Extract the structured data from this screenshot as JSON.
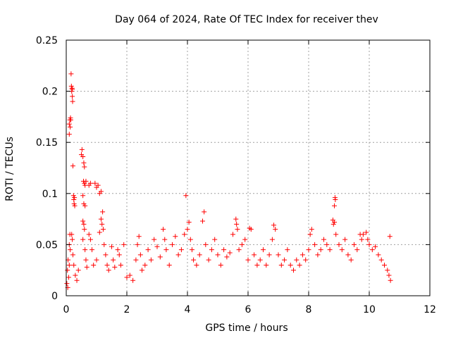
{
  "chart_data": {
    "type": "scatter",
    "title": "Day 064 of 2024, Rate Of TEC Index for receiver thev",
    "xlabel": "GPS time / hours",
    "ylabel": "ROTI / TECUs",
    "xlim": [
      0,
      12
    ],
    "ylim": [
      0,
      0.25
    ],
    "x_ticks": [
      0,
      2,
      4,
      6,
      8,
      10,
      12
    ],
    "x_tick_labels": [
      "0",
      "2",
      "4",
      "6",
      "8",
      "10",
      "12"
    ],
    "y_ticks": [
      0,
      0.05,
      0.1,
      0.15,
      0.2,
      0.25
    ],
    "y_tick_labels": [
      "0",
      "0.05",
      "0.1",
      "0.15",
      "0.2",
      "0.25"
    ],
    "grid": true,
    "marker": "+",
    "color": "#ff0000",
    "series": [
      {
        "name": "ROTI",
        "points": [
          [
            0.02,
            0.012
          ],
          [
            0.04,
            0.025
          ],
          [
            0.06,
            0.035
          ],
          [
            0.05,
            0.008
          ],
          [
            0.08,
            0.018
          ],
          [
            0.1,
            0.03
          ],
          [
            0.1,
            0.05
          ],
          [
            0.12,
            0.06
          ],
          [
            0.13,
            0.045
          ],
          [
            0.1,
            0.158
          ],
          [
            0.1,
            0.168
          ],
          [
            0.12,
            0.172
          ],
          [
            0.14,
            0.174
          ],
          [
            0.15,
            0.172
          ],
          [
            0.13,
            0.165
          ],
          [
            0.16,
            0.217
          ],
          [
            0.17,
            0.205
          ],
          [
            0.18,
            0.2
          ],
          [
            0.19,
            0.203
          ],
          [
            0.2,
            0.195
          ],
          [
            0.21,
            0.19
          ],
          [
            0.2,
            0.202
          ],
          [
            0.22,
            0.127
          ],
          [
            0.24,
            0.098
          ],
          [
            0.25,
            0.094
          ],
          [
            0.27,
            0.096
          ],
          [
            0.26,
            0.09
          ],
          [
            0.28,
            0.088
          ],
          [
            0.18,
            0.06
          ],
          [
            0.2,
            0.055
          ],
          [
            0.22,
            0.04
          ],
          [
            0.25,
            0.03
          ],
          [
            0.3,
            0.02
          ],
          [
            0.35,
            0.015
          ],
          [
            0.4,
            0.025
          ],
          [
            0.5,
            0.138
          ],
          [
            0.52,
            0.143
          ],
          [
            0.55,
            0.136
          ],
          [
            0.58,
            0.13
          ],
          [
            0.6,
            0.126
          ],
          [
            0.57,
            0.112
          ],
          [
            0.6,
            0.11
          ],
          [
            0.62,
            0.108
          ],
          [
            0.65,
            0.112
          ],
          [
            0.55,
            0.098
          ],
          [
            0.58,
            0.09
          ],
          [
            0.62,
            0.088
          ],
          [
            0.55,
            0.073
          ],
          [
            0.58,
            0.07
          ],
          [
            0.6,
            0.065
          ],
          [
            0.55,
            0.055
          ],
          [
            0.62,
            0.045
          ],
          [
            0.65,
            0.035
          ],
          [
            0.68,
            0.028
          ],
          [
            0.75,
            0.108
          ],
          [
            0.8,
            0.11
          ],
          [
            0.95,
            0.11
          ],
          [
            1.0,
            0.106
          ],
          [
            1.05,
            0.108
          ],
          [
            1.1,
            0.1
          ],
          [
            1.15,
            0.102
          ],
          [
            0.75,
            0.06
          ],
          [
            0.8,
            0.055
          ],
          [
            0.85,
            0.045
          ],
          [
            0.9,
            0.03
          ],
          [
            1.0,
            0.035
          ],
          [
            1.1,
            0.062
          ],
          [
            1.15,
            0.075
          ],
          [
            1.2,
            0.082
          ],
          [
            1.18,
            0.07
          ],
          [
            1.22,
            0.065
          ],
          [
            1.25,
            0.05
          ],
          [
            1.3,
            0.04
          ],
          [
            1.35,
            0.03
          ],
          [
            1.4,
            0.025
          ],
          [
            1.5,
            0.048
          ],
          [
            1.55,
            0.035
          ],
          [
            1.6,
            0.028
          ],
          [
            1.7,
            0.045
          ],
          [
            1.75,
            0.04
          ],
          [
            1.8,
            0.03
          ],
          [
            1.9,
            0.05
          ],
          [
            2.0,
            0.018
          ],
          [
            2.1,
            0.02
          ],
          [
            2.2,
            0.015
          ],
          [
            2.3,
            0.035
          ],
          [
            2.35,
            0.05
          ],
          [
            2.4,
            0.058
          ],
          [
            2.45,
            0.04
          ],
          [
            2.5,
            0.025
          ],
          [
            2.6,
            0.03
          ],
          [
            2.7,
            0.045
          ],
          [
            2.8,
            0.035
          ],
          [
            2.9,
            0.055
          ],
          [
            3.0,
            0.048
          ],
          [
            3.1,
            0.038
          ],
          [
            3.2,
            0.065
          ],
          [
            3.25,
            0.055
          ],
          [
            3.3,
            0.045
          ],
          [
            3.4,
            0.03
          ],
          [
            3.5,
            0.05
          ],
          [
            3.6,
            0.058
          ],
          [
            3.7,
            0.04
          ],
          [
            3.8,
            0.045
          ],
          [
            3.9,
            0.06
          ],
          [
            3.95,
            0.098
          ],
          [
            4.0,
            0.065
          ],
          [
            4.05,
            0.072
          ],
          [
            4.1,
            0.055
          ],
          [
            4.15,
            0.045
          ],
          [
            4.2,
            0.035
          ],
          [
            4.3,
            0.03
          ],
          [
            4.4,
            0.04
          ],
          [
            4.5,
            0.073
          ],
          [
            4.55,
            0.082
          ],
          [
            4.6,
            0.05
          ],
          [
            4.7,
            0.035
          ],
          [
            4.8,
            0.045
          ],
          [
            4.9,
            0.055
          ],
          [
            5.0,
            0.04
          ],
          [
            5.1,
            0.03
          ],
          [
            5.2,
            0.045
          ],
          [
            5.3,
            0.038
          ],
          [
            5.4,
            0.042
          ],
          [
            5.5,
            0.06
          ],
          [
            5.6,
            0.075
          ],
          [
            5.62,
            0.07
          ],
          [
            5.65,
            0.065
          ],
          [
            5.7,
            0.045
          ],
          [
            5.8,
            0.05
          ],
          [
            5.9,
            0.055
          ],
          [
            6.0,
            0.035
          ],
          [
            6.05,
            0.066
          ],
          [
            6.1,
            0.065
          ],
          [
            6.2,
            0.04
          ],
          [
            6.3,
            0.03
          ],
          [
            6.4,
            0.035
          ],
          [
            6.5,
            0.045
          ],
          [
            6.6,
            0.03
          ],
          [
            6.7,
            0.04
          ],
          [
            6.8,
            0.055
          ],
          [
            6.85,
            0.069
          ],
          [
            6.9,
            0.065
          ],
          [
            7.0,
            0.04
          ],
          [
            7.1,
            0.03
          ],
          [
            7.2,
            0.035
          ],
          [
            7.3,
            0.045
          ],
          [
            7.4,
            0.03
          ],
          [
            7.5,
            0.025
          ],
          [
            7.6,
            0.035
          ],
          [
            7.7,
            0.03
          ],
          [
            7.8,
            0.04
          ],
          [
            7.9,
            0.035
          ],
          [
            8.0,
            0.045
          ],
          [
            8.05,
            0.06
          ],
          [
            8.1,
            0.065
          ],
          [
            8.2,
            0.05
          ],
          [
            8.3,
            0.04
          ],
          [
            8.4,
            0.045
          ],
          [
            8.5,
            0.055
          ],
          [
            8.6,
            0.05
          ],
          [
            8.7,
            0.045
          ],
          [
            8.8,
            0.074
          ],
          [
            8.82,
            0.07
          ],
          [
            8.85,
            0.072
          ],
          [
            8.87,
            0.096
          ],
          [
            8.88,
            0.094
          ],
          [
            8.85,
            0.088
          ],
          [
            8.9,
            0.06
          ],
          [
            9.0,
            0.05
          ],
          [
            9.1,
            0.045
          ],
          [
            9.2,
            0.055
          ],
          [
            9.3,
            0.04
          ],
          [
            9.4,
            0.035
          ],
          [
            9.5,
            0.05
          ],
          [
            9.6,
            0.045
          ],
          [
            9.7,
            0.06
          ],
          [
            9.75,
            0.055
          ],
          [
            9.8,
            0.06
          ],
          [
            9.9,
            0.062
          ],
          [
            9.95,
            0.055
          ],
          [
            10.0,
            0.05
          ],
          [
            10.1,
            0.045
          ],
          [
            10.2,
            0.048
          ],
          [
            10.3,
            0.04
          ],
          [
            10.4,
            0.035
          ],
          [
            10.5,
            0.03
          ],
          [
            10.6,
            0.025
          ],
          [
            10.68,
            0.058
          ],
          [
            10.65,
            0.02
          ],
          [
            10.7,
            0.015
          ]
        ]
      }
    ]
  }
}
